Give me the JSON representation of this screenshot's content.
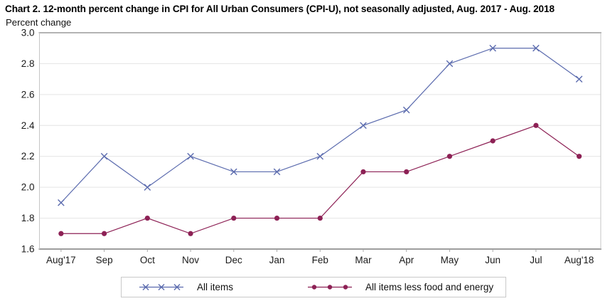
{
  "chart_data": {
    "type": "line",
    "title": "Chart 2. 12-month percent change in CPI for All Urban Consumers (CPI-U), not seasonally adjusted, Aug. 2017 - Aug. 2018",
    "ylabel": "Percent change",
    "categories": [
      "Aug'17",
      "Sep",
      "Oct",
      "Nov",
      "Dec",
      "Jan",
      "Feb",
      "Mar",
      "Apr",
      "May",
      "Jun",
      "Jul",
      "Aug'18"
    ],
    "yticks": [
      1.6,
      1.8,
      2.0,
      2.2,
      2.4,
      2.6,
      2.8,
      3.0
    ],
    "ylim": [
      1.6,
      3.0
    ],
    "grid": true,
    "legend_position": "bottom-center-boxed",
    "series": [
      {
        "name": "All items",
        "marker": "x",
        "color": "#5b6bae",
        "values": [
          1.9,
          2.2,
          2.0,
          2.2,
          2.1,
          2.1,
          2.2,
          2.4,
          2.5,
          2.8,
          2.9,
          2.9,
          2.7
        ]
      },
      {
        "name": "All items less food and energy",
        "marker": "circle",
        "color": "#8d2155",
        "values": [
          1.7,
          1.7,
          1.8,
          1.7,
          1.8,
          1.8,
          1.8,
          2.1,
          2.1,
          2.2,
          2.3,
          2.4,
          2.2
        ]
      }
    ],
    "colors": {
      "gridline": "#e4e4e4",
      "border_top": "#b3b3b3",
      "border_side": "#c6c6c6",
      "border_bottom": "#9e9e9e",
      "tick": "#a8a8a8",
      "axis_text": "#1a1a1a"
    }
  }
}
